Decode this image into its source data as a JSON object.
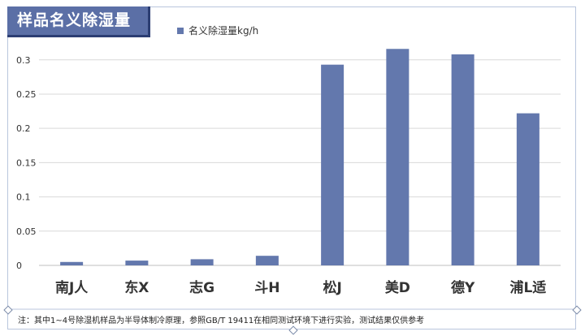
{
  "title": "样品名义除湿量",
  "note": "注：其中1~4号除湿机样品为半导体制冷原理，参照GB/T 19411在相同测试环境下进行实验，测试结果仅供参考",
  "colors": {
    "bar": "#6378ad",
    "title_bg": "#5b6fa6"
  },
  "chart_data": {
    "type": "bar",
    "categories": [
      "南J人",
      "东X",
      "志G",
      "斗H",
      "松J",
      "美D",
      "德Y",
      "浦L适"
    ],
    "series": [
      {
        "name": "名义除湿量kg/h",
        "values": [
          0.005,
          0.007,
          0.009,
          0.014,
          0.293,
          0.316,
          0.308,
          0.222
        ]
      }
    ],
    "yticks": [
      "0",
      "0.05",
      "0.1",
      "0.15",
      "0.2",
      "0.25",
      "0.3"
    ],
    "ylim": [
      0,
      0.34
    ],
    "grid": true,
    "legend_position": "top-left"
  }
}
